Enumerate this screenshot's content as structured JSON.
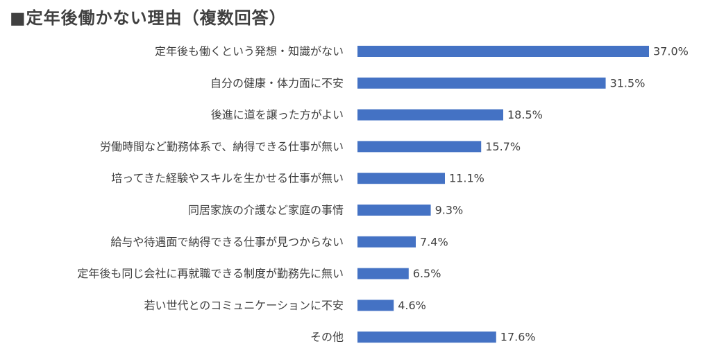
{
  "chart_data": {
    "type": "bar",
    "orientation": "horizontal",
    "title": "■定年後働かない理由（複数回答）",
    "categories": [
      "定年後も働くという発想・知識がない",
      "自分の健康・体力面に不安",
      "後進に道を譲った方がよい",
      "労働時間など勤務体系で、納得できる仕事が無い",
      "培ってきた経験やスキルを生かせる仕事が無い",
      "同居家族の介護など家庭の事情",
      "給与や待遇面で納得できる仕事が見つからない",
      "定年後も同じ会社に再就職できる制度が勤務先に無い",
      "若い世代とのコミュニケーションに不安",
      "その他"
    ],
    "values": [
      37.0,
      31.5,
      18.5,
      15.7,
      11.1,
      9.3,
      7.4,
      6.5,
      4.6,
      17.6
    ],
    "value_labels": [
      "37.0%",
      "31.5%",
      "18.5%",
      "15.7%",
      "11.1%",
      "9.3%",
      "7.4%",
      "6.5%",
      "4.6%",
      "17.6%"
    ],
    "xlim": [
      0,
      37.0
    ],
    "grid": false,
    "legend": "none",
    "bar_color": "#4472C4"
  }
}
